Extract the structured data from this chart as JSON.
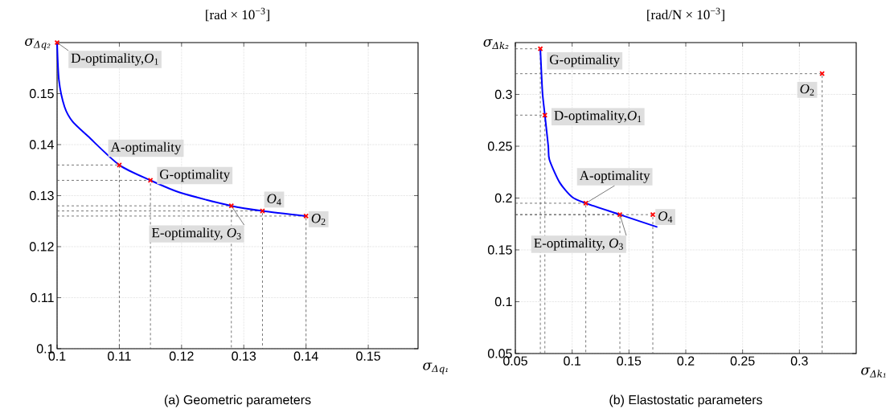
{
  "chart_data": [
    {
      "type": "line",
      "title": "[rad × 10$^{−3}$]",
      "xlabel": "σ$_{Δq₁}$",
      "ylabel": "σ$_{Δq₂}$",
      "xlim": [
        0.1,
        0.158
      ],
      "ylim": [
        0.1,
        0.16
      ],
      "xticks": [
        0.1,
        0.11,
        0.12,
        0.13,
        0.14,
        0.15
      ],
      "yticks": [
        0.1,
        0.11,
        0.12,
        0.13,
        0.14,
        0.15
      ],
      "grid": true,
      "series": [
        {
          "color": "#555555",
          "line_style": "dashed",
          "x": [
            0.1,
            0.11,
            0.11
          ],
          "values": [
            0.136,
            0.136,
            0.1
          ]
        },
        {
          "color": "#555555",
          "line_style": "dashed",
          "x": [
            0.1,
            0.115,
            0.115
          ],
          "values": [
            0.133,
            0.133,
            0.1
          ]
        },
        {
          "color": "#555555",
          "line_style": "dashed",
          "x": [
            0.1,
            0.128,
            0.128
          ],
          "values": [
            0.128,
            0.128,
            0.1
          ]
        },
        {
          "color": "#555555",
          "line_style": "dashed",
          "x": [
            0.1,
            0.133,
            0.133
          ],
          "values": [
            0.127,
            0.127,
            0.1
          ]
        },
        {
          "color": "#555555",
          "line_style": "dashed",
          "x": [
            0.1,
            0.14,
            0.14
          ],
          "values": [
            0.126,
            0.126,
            0.1
          ]
        },
        {
          "color": "#0000ff",
          "x": [
            0.1,
            0.1003,
            0.1012,
            0.1025,
            0.105,
            0.11,
            0.115,
            0.12,
            0.128,
            0.133,
            0.14
          ],
          "values": [
            0.16,
            0.1526,
            0.1474,
            0.1445,
            0.1416,
            0.136,
            0.133,
            0.1305,
            0.128,
            0.127,
            0.126
          ]
        },
        {
          "type": "scatter",
          "color": "#ff0000",
          "marker": "cross",
          "x": [
            0.1,
            0.11,
            0.115,
            0.128,
            0.133,
            0.14
          ],
          "values": [
            0.16,
            0.136,
            0.133,
            0.128,
            0.127,
            0.126
          ]
        }
      ],
      "annotations": [
        {
          "text": "D-optimality,*O*$_{1}$",
          "x": 0.1,
          "y": 0.16
        },
        {
          "text": "A-optimality",
          "x": 0.11,
          "y": 0.136
        },
        {
          "text": "G-optimality",
          "x": 0.115,
          "y": 0.133
        },
        {
          "text": "E-optimality, *O*$_{3}$",
          "x": 0.128,
          "y": 0.128
        },
        {
          "text": "*O*$_{4}$",
          "x": 0.133,
          "y": 0.127
        },
        {
          "text": "*O*$_{2}$",
          "x": 0.14,
          "y": 0.126
        },
        "(a) Geometric parameters"
      ]
    },
    {
      "type": "line",
      "title": "[rad/N × 10$^{−3}$]",
      "xlabel": "σ$_{Δk₁}$",
      "ylabel": "σ$_{Δk₂}$",
      "xlim": [
        0.05,
        0.35
      ],
      "ylim": [
        0.05,
        0.35
      ],
      "xticks": [
        0.05,
        0.1,
        0.15,
        0.2,
        0.25,
        0.3
      ],
      "yticks": [
        0.05,
        0.1,
        0.15,
        0.2,
        0.25,
        0.3
      ],
      "grid": true,
      "series": [
        {
          "color": "#555555",
          "line_style": "dashed",
          "x": [
            0.05,
            0.072,
            0.072
          ],
          "values": [
            0.344,
            0.344,
            0.05
          ]
        },
        {
          "color": "#555555",
          "line_style": "dashed",
          "x": [
            0.05,
            0.076,
            0.076
          ],
          "values": [
            0.28,
            0.28,
            0.05
          ]
        },
        {
          "color": "#555555",
          "line_style": "dashed",
          "x": [
            0.05,
            0.112,
            0.112
          ],
          "values": [
            0.195,
            0.195,
            0.05
          ]
        },
        {
          "color": "#555555",
          "line_style": "dashed",
          "x": [
            0.05,
            0.142,
            0.142
          ],
          "values": [
            0.184,
            0.184,
            0.05
          ]
        },
        {
          "color": "#555555",
          "line_style": "dashed",
          "x": [
            0.05,
            0.171,
            0.171
          ],
          "values": [
            0.184,
            0.184,
            0.05
          ]
        },
        {
          "color": "#555555",
          "line_style": "dashed",
          "x": [
            0.05,
            0.32,
            0.32
          ],
          "values": [
            0.32,
            0.32,
            0.05
          ]
        },
        {
          "color": "#0000ff",
          "x": [
            0.072,
            0.073,
            0.074,
            0.076,
            0.079,
            0.08,
            0.089,
            0.1,
            0.112,
            0.142,
            0.175
          ],
          "values": [
            0.344,
            0.32,
            0.3,
            0.28,
            0.25,
            0.237,
            0.215,
            0.201,
            0.195,
            0.184,
            0.172
          ]
        },
        {
          "type": "scatter",
          "color": "#ff0000",
          "marker": "cross",
          "x": [
            0.072,
            0.076,
            0.112,
            0.142,
            0.171,
            0.32
          ],
          "values": [
            0.344,
            0.28,
            0.195,
            0.184,
            0.184,
            0.32
          ]
        }
      ],
      "annotations": [
        {
          "text": "G-optimality",
          "x": 0.072,
          "y": 0.344
        },
        {
          "text": "D-optimality,*O*$_{1}$",
          "x": 0.076,
          "y": 0.28
        },
        {
          "text": "A-optimality",
          "x": 0.112,
          "y": 0.195
        },
        {
          "text": "E-optimality, *O*$_{3}$",
          "x": 0.142,
          "y": 0.184
        },
        {
          "text": "*O*$_{4}$",
          "x": 0.171,
          "y": 0.184
        },
        {
          "text": "*O*$_{2}$",
          "x": 0.32,
          "y": 0.32
        },
        "(b) Elastostatic parameters"
      ]
    }
  ]
}
